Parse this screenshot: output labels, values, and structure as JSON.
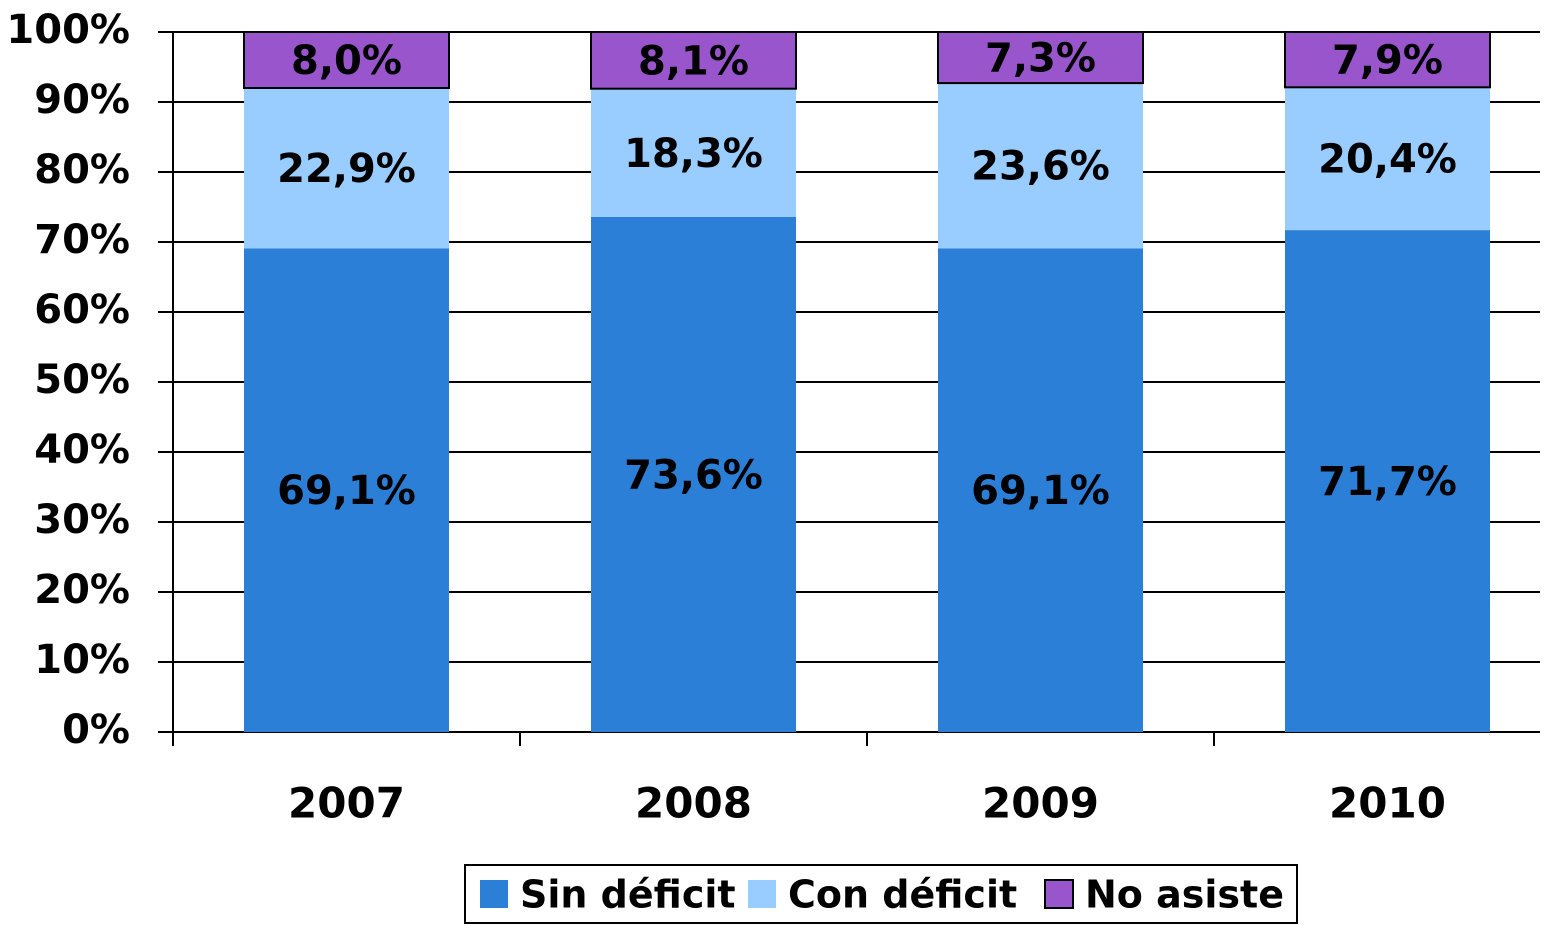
{
  "chart_data": {
    "type": "stacked_bar",
    "categories": [
      "2007",
      "2008",
      "2009",
      "2010"
    ],
    "series": [
      {
        "name": "Sin déficit",
        "color": "#2b7fd6",
        "values": [
          69.1,
          73.6,
          69.1,
          71.7
        ],
        "value_labels": [
          "69,1%",
          "73,6%",
          "69,1%",
          "71,7%"
        ]
      },
      {
        "name": "Con déficit",
        "color": "#99ccff",
        "values": [
          22.9,
          18.3,
          23.6,
          20.4
        ],
        "value_labels": [
          "22,9%",
          "18,3%",
          "23,6%",
          "20,4%"
        ]
      },
      {
        "name": "No asiste",
        "color": "#9955cc",
        "values": [
          8.0,
          8.1,
          7.3,
          7.9
        ],
        "value_labels": [
          "8,0%",
          "8,1%",
          "7,3%",
          "7,9%"
        ]
      }
    ],
    "ylim": [
      0,
      100
    ],
    "yticks": [
      {
        "value": 0,
        "label": "0%"
      },
      {
        "value": 10,
        "label": "10%"
      },
      {
        "value": 20,
        "label": "20%"
      },
      {
        "value": 30,
        "label": "30%"
      },
      {
        "value": 40,
        "label": "40%"
      },
      {
        "value": 50,
        "label": "50%"
      },
      {
        "value": 60,
        "label": "60%"
      },
      {
        "value": 70,
        "label": "70%"
      },
      {
        "value": 80,
        "label": "80%"
      },
      {
        "value": 90,
        "label": "90%"
      },
      {
        "value": 100,
        "label": "100%"
      }
    ],
    "grid": true,
    "legend": "bottom"
  }
}
